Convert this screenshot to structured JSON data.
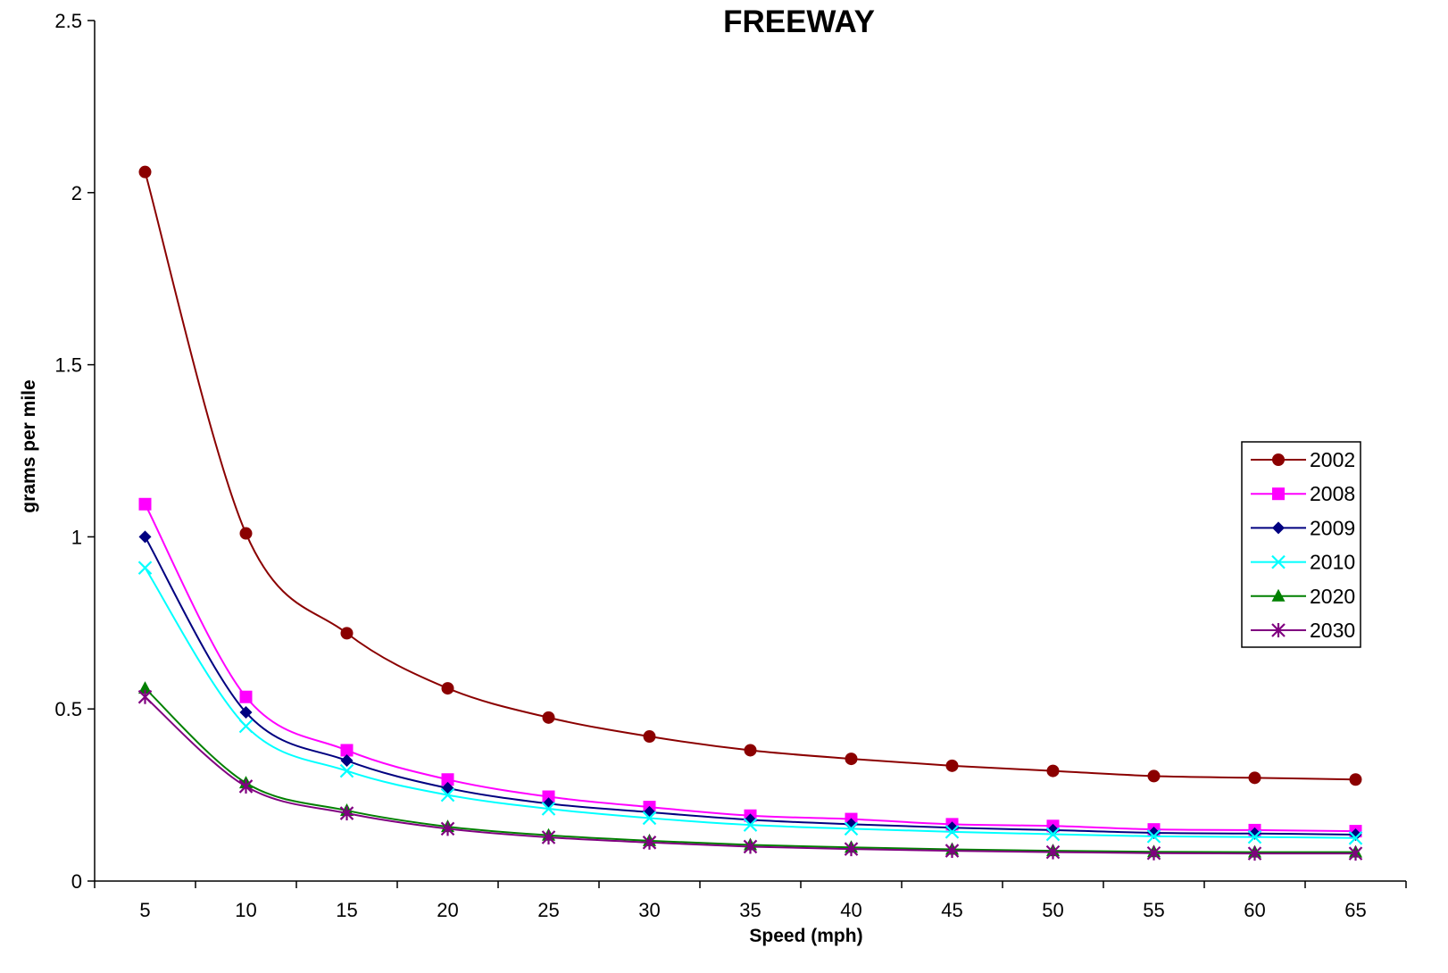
{
  "chart_data": {
    "type": "line",
    "title": "FREEWAY",
    "xlabel": "Speed (mph)",
    "ylabel": "grams per mile",
    "ylim": [
      0,
      2.5
    ],
    "yticks": [
      "0",
      "0.5",
      "1",
      "1.5",
      "2",
      "2.5"
    ],
    "categories": [
      "5",
      "10",
      "15",
      "20",
      "25",
      "30",
      "35",
      "40",
      "45",
      "50",
      "55",
      "60",
      "65"
    ],
    "grid": false,
    "legend_position": "right",
    "series": [
      {
        "name": "2002",
        "color": "#8B0000",
        "marker": "circle",
        "values": [
          2.06,
          1.01,
          0.72,
          0.56,
          0.475,
          0.42,
          0.38,
          0.355,
          0.335,
          0.32,
          0.305,
          0.3,
          0.295
        ]
      },
      {
        "name": "2008",
        "color": "#FF00FF",
        "marker": "square",
        "values": [
          1.095,
          0.535,
          0.38,
          0.295,
          0.245,
          0.215,
          0.19,
          0.18,
          0.165,
          0.16,
          0.15,
          0.148,
          0.145
        ]
      },
      {
        "name": "2009",
        "color": "#000080",
        "marker": "diamond",
        "values": [
          1.0,
          0.49,
          0.35,
          0.27,
          0.225,
          0.2,
          0.178,
          0.165,
          0.155,
          0.148,
          0.14,
          0.138,
          0.135
        ]
      },
      {
        "name": "2010",
        "color": "#00FFFF",
        "marker": "x",
        "values": [
          0.91,
          0.45,
          0.32,
          0.25,
          0.21,
          0.183,
          0.163,
          0.152,
          0.143,
          0.136,
          0.13,
          0.128,
          0.125
        ]
      },
      {
        "name": "2020",
        "color": "#008000",
        "marker": "triangle",
        "values": [
          0.56,
          0.285,
          0.205,
          0.158,
          0.133,
          0.117,
          0.105,
          0.098,
          0.092,
          0.088,
          0.085,
          0.084,
          0.084
        ]
      },
      {
        "name": "2030",
        "color": "#800080",
        "marker": "asterisk",
        "values": [
          0.535,
          0.275,
          0.197,
          0.152,
          0.127,
          0.112,
          0.1,
          0.093,
          0.088,
          0.084,
          0.081,
          0.08,
          0.08
        ]
      }
    ]
  }
}
